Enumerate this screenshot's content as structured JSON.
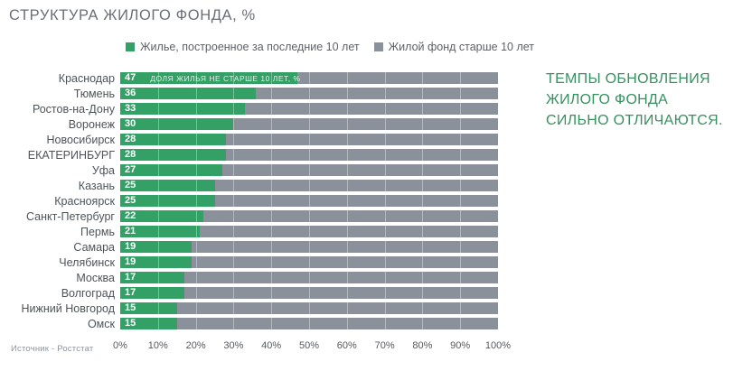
{
  "title": "СТРУКТУРА ЖИЛОГО ФОНДА, %",
  "legend": [
    {
      "label": "Жилье, построенное за последние 10 лет",
      "color": "#33a066"
    },
    {
      "label": "Жилой фонд старше 10 лет",
      "color": "#8b919b"
    }
  ],
  "annotation_in_bar": "ДОЛЯ ЖИЛЬЯ НЕ СТАРШЕ 10 ЛЕТ, %",
  "callout": "ТЕМПЫ ОБНОВЛЕНИЯ\nЖИЛОГО ФОНДА\nСИЛЬНО ОТЛИЧАЮТСЯ.",
  "source": "Источник - Ростстат",
  "colors": {
    "new_housing": "#33a066",
    "old_housing": "#8b919b",
    "callout_text": "#37915f",
    "title_text": "#6a6f76"
  },
  "chart_data": {
    "type": "bar",
    "orientation": "horizontal",
    "stacked": true,
    "title": "СТРУКТУРА ЖИЛОГО ФОНДА, %",
    "categories": [
      "Краснодар",
      "Тюмень",
      "Ростов-на-Дону",
      "Воронеж",
      "Новосибирск",
      "ЕКАТЕРИНБУРГ",
      "Уфа",
      "Казань",
      "Красноярск",
      "Санкт-Петербург",
      "Пермь",
      "Самара",
      "Челябинск",
      "Москва",
      "Волгоград",
      "Нижний Новгород",
      "Омск"
    ],
    "series": [
      {
        "name": "Жилье, построенное за последние 10 лет",
        "values": [
          47,
          36,
          33,
          30,
          28,
          28,
          27,
          25,
          25,
          22,
          21,
          19,
          19,
          17,
          17,
          15,
          15
        ]
      },
      {
        "name": "Жилой фонд старше 10 лет",
        "values": [
          53,
          64,
          67,
          70,
          72,
          72,
          73,
          75,
          75,
          78,
          79,
          81,
          81,
          83,
          83,
          85,
          85
        ]
      }
    ],
    "x_ticks": [
      "0%",
      "10%",
      "20%",
      "30%",
      "40%",
      "50%",
      "60%",
      "70%",
      "80%",
      "90%",
      "100%"
    ],
    "xlim": [
      0,
      100
    ],
    "grid": "vertical, every 10%",
    "legend_position": "top",
    "value_labels": "first series only, white, inside bar start"
  }
}
